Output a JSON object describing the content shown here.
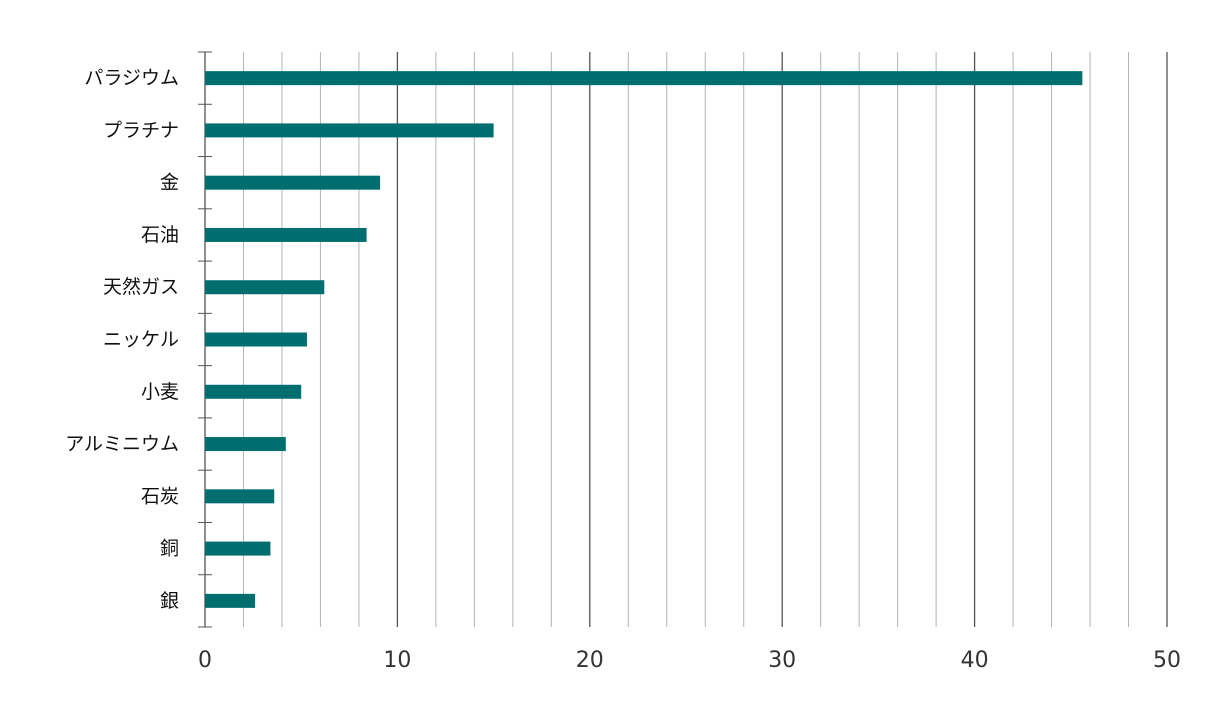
{
  "chart_data": {
    "type": "bar",
    "orientation": "horizontal",
    "categories": [
      "パラジウム",
      "プラチナ",
      "金",
      "石油",
      "天然ガス",
      "ニッケル",
      "小麦",
      "アルミニウム",
      "石炭",
      "銅",
      "銀"
    ],
    "values": [
      45.6,
      15.0,
      9.1,
      8.4,
      6.2,
      5.3,
      5.0,
      4.2,
      3.6,
      3.4,
      2.6
    ],
    "xlim": [
      0,
      50
    ],
    "xticks": [
      "0",
      "10",
      "20",
      "30",
      "40",
      "50"
    ],
    "title": "",
    "xlabel": "",
    "ylabel": "",
    "grid": true,
    "bar_color": "#006e6e"
  }
}
